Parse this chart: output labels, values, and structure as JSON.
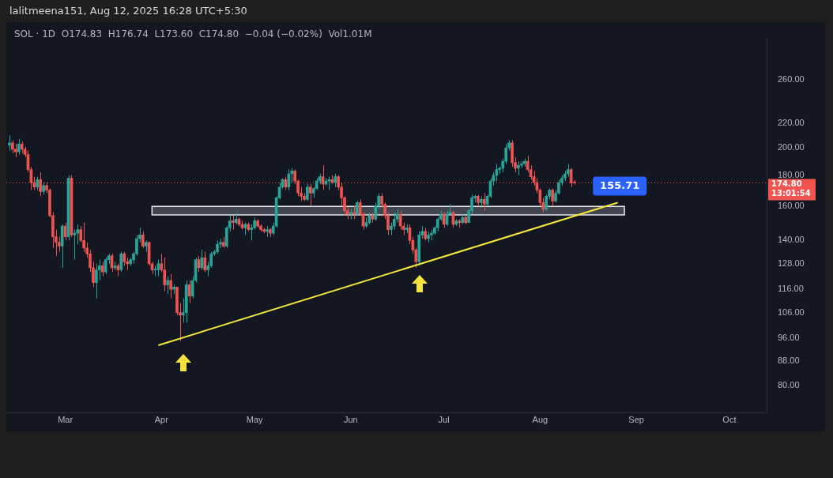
{
  "chart_data": {
    "type": "candlestick",
    "title": "lalitmeena151, Aug 12, 2025 16:28 UTC+5:30",
    "subtitle": "SOL · 1D  O174.83  H176.74  L173.60  C174.80  −0.04 (−0.02%)  Vol1.01M",
    "log": true,
    "grid": false,
    "legend": false,
    "xlim": [
      "2025-02-10",
      "2025-10-13"
    ],
    "xticks": [
      {
        "value": "2025-03-01",
        "label": "Mar"
      },
      {
        "value": "2025-04-01",
        "label": "Apr"
      },
      {
        "value": "2025-05-01",
        "label": "May"
      },
      {
        "value": "2025-06-01",
        "label": "Jun"
      },
      {
        "value": "2025-07-01",
        "label": "Jul"
      },
      {
        "value": "2025-08-01",
        "label": "Aug"
      },
      {
        "value": "2025-09-01",
        "label": "Sep"
      },
      {
        "value": "2025-10-01",
        "label": "Oct"
      }
    ],
    "ylim": [
      72,
      305
    ],
    "yticks": [
      {
        "value": 80,
        "label": "80.00"
      },
      {
        "value": 88,
        "label": "88.00"
      },
      {
        "value": 96,
        "label": "96.00"
      },
      {
        "value": 106,
        "label": "106.00"
      },
      {
        "value": 116,
        "label": "116.00"
      },
      {
        "value": 128,
        "label": "128.00"
      },
      {
        "value": 140,
        "label": "140.00"
      },
      {
        "value": 160,
        "label": "160.00"
      },
      {
        "value": 180,
        "label": "180.00"
      },
      {
        "value": 200,
        "label": "200.00"
      },
      {
        "value": 220,
        "label": "220.00"
      },
      {
        "value": 260,
        "label": "260.00"
      }
    ],
    "ref_lines": [
      {
        "axis": "y",
        "value": 174.8,
        "label": "174.80\n13:01:54",
        "color": "#f05350",
        "line_style": "dotted"
      }
    ],
    "bands": [
      {
        "axis": "y",
        "from": 154.5,
        "to": 159.6,
        "color": "#4a4e58"
      }
    ],
    "annotations": [
      {
        "text": "155.71",
        "x": "2025-08-17",
        "y": 155.71
      }
    ],
    "series": [
      {
        "x": [
          "2025-02-11",
          "2025-02-12",
          "2025-02-13",
          "2025-02-14",
          "2025-02-15",
          "2025-02-16",
          "2025-02-17",
          "2025-02-18",
          "2025-02-19",
          "2025-02-20",
          "2025-02-21",
          "2025-02-22",
          "2025-02-23",
          "2025-02-24",
          "2025-02-25",
          "2025-02-26",
          "2025-02-27",
          "2025-02-28",
          "2025-03-01",
          "2025-03-02",
          "2025-03-03",
          "2025-03-04",
          "2025-03-05",
          "2025-03-06",
          "2025-03-07",
          "2025-03-08",
          "2025-03-09",
          "2025-03-10",
          "2025-03-11",
          "2025-03-12",
          "2025-03-13",
          "2025-03-14",
          "2025-03-15",
          "2025-03-16",
          "2025-03-17",
          "2025-03-18",
          "2025-03-19",
          "2025-03-20",
          "2025-03-21",
          "2025-03-22",
          "2025-03-23",
          "2025-03-24",
          "2025-03-25",
          "2025-03-26",
          "2025-03-27",
          "2025-03-28",
          "2025-03-29",
          "2025-03-30",
          "2025-03-31",
          "2025-04-01",
          "2025-04-02",
          "2025-04-03",
          "2025-04-04",
          "2025-04-05",
          "2025-04-06",
          "2025-04-07",
          "2025-04-08",
          "2025-04-09",
          "2025-04-10",
          "2025-04-11",
          "2025-04-12",
          "2025-04-13",
          "2025-04-14",
          "2025-04-15",
          "2025-04-16",
          "2025-04-17",
          "2025-04-18",
          "2025-04-19",
          "2025-04-20",
          "2025-04-21",
          "2025-04-22",
          "2025-04-23",
          "2025-04-24",
          "2025-04-25",
          "2025-04-26",
          "2025-04-27",
          "2025-04-28",
          "2025-04-29",
          "2025-04-30",
          "2025-05-01",
          "2025-05-02",
          "2025-05-03",
          "2025-05-04",
          "2025-05-05",
          "2025-05-06",
          "2025-05-07",
          "2025-05-08",
          "2025-05-09",
          "2025-05-10",
          "2025-05-11",
          "2025-05-12",
          "2025-05-13",
          "2025-05-14",
          "2025-05-15",
          "2025-05-16",
          "2025-05-17",
          "2025-05-18",
          "2025-05-19",
          "2025-05-20",
          "2025-05-21",
          "2025-05-22",
          "2025-05-23",
          "2025-05-24",
          "2025-05-25",
          "2025-05-26",
          "2025-05-27",
          "2025-05-28",
          "2025-05-29",
          "2025-05-30",
          "2025-05-31",
          "2025-06-01",
          "2025-06-02",
          "2025-06-03",
          "2025-06-04",
          "2025-06-05",
          "2025-06-06",
          "2025-06-07",
          "2025-06-08",
          "2025-06-09",
          "2025-06-10",
          "2025-06-11",
          "2025-06-12",
          "2025-06-13",
          "2025-06-14",
          "2025-06-15",
          "2025-06-16",
          "2025-06-17",
          "2025-06-18",
          "2025-06-19",
          "2025-06-20",
          "2025-06-21",
          "2025-06-22",
          "2025-06-23",
          "2025-06-24",
          "2025-06-25",
          "2025-06-26",
          "2025-06-27",
          "2025-06-28",
          "2025-06-29",
          "2025-06-30",
          "2025-07-01",
          "2025-07-02",
          "2025-07-03",
          "2025-07-04",
          "2025-07-05",
          "2025-07-06",
          "2025-07-07",
          "2025-07-08",
          "2025-07-09",
          "2025-07-10",
          "2025-07-11",
          "2025-07-12",
          "2025-07-13",
          "2025-07-14",
          "2025-07-15",
          "2025-07-16",
          "2025-07-17",
          "2025-07-18",
          "2025-07-19",
          "2025-07-20",
          "2025-07-21",
          "2025-07-22",
          "2025-07-23",
          "2025-07-24",
          "2025-07-25",
          "2025-07-26",
          "2025-07-27",
          "2025-07-28",
          "2025-07-29",
          "2025-07-30",
          "2025-07-31",
          "2025-08-01",
          "2025-08-02",
          "2025-08-03",
          "2025-08-04",
          "2025-08-05",
          "2025-08-06",
          "2025-08-07",
          "2025-08-08",
          "2025-08-09",
          "2025-08-10",
          "2025-08-11",
          "2025-08-12"
        ],
        "ohlc": [
          [
            202,
            210,
            198,
            204
          ],
          [
            204,
            206,
            196,
            199
          ],
          [
            199,
            203,
            193,
            197
          ],
          [
            197,
            207,
            195,
            203
          ],
          [
            203,
            205,
            196,
            199
          ],
          [
            199,
            201,
            193,
            195
          ],
          [
            195,
            198,
            182,
            184
          ],
          [
            184,
            186,
            170,
            175
          ],
          [
            175,
            179,
            170,
            172
          ],
          [
            172,
            179,
            170,
            177
          ],
          [
            177,
            182,
            166,
            169
          ],
          [
            169,
            175,
            167,
            173
          ],
          [
            173,
            175,
            168,
            170
          ],
          [
            170,
            171,
            153,
            154
          ],
          [
            154,
            156,
            136,
            142
          ],
          [
            142,
            146,
            132,
            139
          ],
          [
            139,
            142,
            134,
            137
          ],
          [
            137,
            149,
            126,
            148
          ],
          [
            148,
            150,
            140,
            142
          ],
          [
            142,
            180,
            140,
            178
          ],
          [
            178,
            180,
            142,
            143
          ],
          [
            143,
            146,
            130,
            144
          ],
          [
            144,
            149,
            138,
            146
          ],
          [
            146,
            148,
            139,
            140
          ],
          [
            140,
            150,
            134,
            136
          ],
          [
            136,
            139,
            131,
            133
          ],
          [
            133,
            135,
            124,
            126
          ],
          [
            126,
            129,
            117,
            119
          ],
          [
            119,
            128,
            112,
            125
          ],
          [
            125,
            130,
            120,
            127
          ],
          [
            127,
            129,
            122,
            124
          ],
          [
            124,
            131,
            123,
            130
          ],
          [
            130,
            133,
            128,
            132
          ],
          [
            132,
            133,
            124,
            126
          ],
          [
            126,
            129,
            125,
            127
          ],
          [
            127,
            128,
            122,
            125
          ],
          [
            125,
            134,
            124,
            133
          ],
          [
            133,
            134,
            127,
            129
          ],
          [
            129,
            131,
            125,
            128
          ],
          [
            128,
            131,
            127,
            130
          ],
          [
            130,
            134,
            128,
            133
          ],
          [
            133,
            143,
            132,
            141
          ],
          [
            141,
            147,
            139,
            143
          ],
          [
            143,
            145,
            136,
            137
          ],
          [
            137,
            140,
            134,
            139
          ],
          [
            139,
            139,
            127,
            128
          ],
          [
            128,
            129,
            123,
            125
          ],
          [
            125,
            127,
            122,
            125
          ],
          [
            125,
            130,
            122,
            128
          ],
          [
            128,
            133,
            124,
            125
          ],
          [
            125,
            131,
            115,
            118
          ],
          [
            118,
            122,
            114,
            120
          ],
          [
            120,
            123,
            112,
            116
          ],
          [
            116,
            118,
            114,
            117
          ],
          [
            117,
            117,
            105,
            106
          ],
          [
            106,
            110,
            95,
            105
          ],
          [
            105,
            112,
            102,
            106
          ],
          [
            106,
            120,
            102,
            118
          ],
          [
            118,
            120,
            110,
            113
          ],
          [
            113,
            122,
            112,
            120
          ],
          [
            120,
            131,
            119,
            130
          ],
          [
            130,
            132,
            124,
            126
          ],
          [
            126,
            135,
            125,
            131
          ],
          [
            131,
            134,
            124,
            125
          ],
          [
            125,
            129,
            122,
            127
          ],
          [
            127,
            134,
            126,
            133
          ],
          [
            133,
            135,
            132,
            134
          ],
          [
            134,
            140,
            133,
            138
          ],
          [
            138,
            141,
            136,
            139
          ],
          [
            139,
            142,
            136,
            137
          ],
          [
            137,
            148,
            136,
            147
          ],
          [
            147,
            154,
            145,
            151
          ],
          [
            151,
            154,
            146,
            150
          ],
          [
            150,
            156,
            149,
            152
          ],
          [
            152,
            153,
            148,
            149
          ],
          [
            149,
            151,
            146,
            147
          ],
          [
            147,
            150,
            143,
            149
          ],
          [
            149,
            150,
            145,
            146
          ],
          [
            146,
            149,
            140,
            147
          ],
          [
            147,
            153,
            146,
            151
          ],
          [
            151,
            152,
            147,
            148
          ],
          [
            148,
            149,
            145,
            146
          ],
          [
            146,
            147,
            144,
            145
          ],
          [
            145,
            148,
            142,
            146
          ],
          [
            146,
            147,
            142,
            144
          ],
          [
            144,
            150,
            143,
            148
          ],
          [
            148,
            166,
            147,
            165
          ],
          [
            165,
            175,
            164,
            172
          ],
          [
            172,
            178,
            171,
            177
          ],
          [
            177,
            179,
            170,
            172
          ],
          [
            172,
            184,
            170,
            181
          ],
          [
            181,
            185,
            175,
            183
          ],
          [
            183,
            184,
            174,
            176
          ],
          [
            176,
            177,
            166,
            168
          ],
          [
            168,
            172,
            163,
            166
          ],
          [
            166,
            168,
            163,
            164
          ],
          [
            164,
            174,
            163,
            172
          ],
          [
            172,
            174,
            160,
            168
          ],
          [
            168,
            172,
            165,
            171
          ],
          [
            171,
            178,
            170,
            176
          ],
          [
            176,
            181,
            174,
            179
          ],
          [
            179,
            187,
            170,
            174
          ],
          [
            174,
            178,
            173,
            176
          ],
          [
            176,
            179,
            170,
            177
          ],
          [
            177,
            180,
            174,
            175
          ],
          [
            175,
            181,
            172,
            179
          ],
          [
            179,
            180,
            170,
            172
          ],
          [
            172,
            175,
            160,
            165
          ],
          [
            165,
            166,
            154,
            157
          ],
          [
            157,
            159,
            152,
            155
          ],
          [
            155,
            158,
            152,
            156
          ],
          [
            156,
            160,
            152,
            155
          ],
          [
            155,
            163,
            154,
            162
          ],
          [
            162,
            164,
            154,
            155
          ],
          [
            155,
            156,
            146,
            148
          ],
          [
            148,
            153,
            147,
            150
          ],
          [
            150,
            156,
            149,
            154
          ],
          [
            154,
            156,
            150,
            152
          ],
          [
            152,
            162,
            151,
            160
          ],
          [
            160,
            168,
            158,
            166
          ],
          [
            166,
            168,
            159,
            161
          ],
          [
            161,
            162,
            152,
            154
          ],
          [
            154,
            156,
            143,
            146
          ],
          [
            146,
            150,
            143,
            148
          ],
          [
            148,
            156,
            146,
            152
          ],
          [
            152,
            158,
            150,
            155
          ],
          [
            155,
            157,
            146,
            148
          ],
          [
            148,
            150,
            143,
            146
          ],
          [
            146,
            149,
            144,
            147
          ],
          [
            147,
            149,
            138,
            140
          ],
          [
            140,
            142,
            133,
            135
          ],
          [
            135,
            136,
            126,
            129
          ],
          [
            129,
            145,
            127,
            143
          ],
          [
            143,
            148,
            141,
            145
          ],
          [
            145,
            147,
            140,
            141
          ],
          [
            141,
            145,
            139,
            143
          ],
          [
            143,
            146,
            140,
            144
          ],
          [
            144,
            148,
            143,
            147
          ],
          [
            147,
            153,
            145,
            152
          ],
          [
            152,
            157,
            151,
            155
          ],
          [
            155,
            156,
            147,
            149
          ],
          [
            149,
            157,
            148,
            155
          ],
          [
            155,
            161,
            154,
            156
          ],
          [
            156,
            157,
            147,
            149
          ],
          [
            149,
            152,
            148,
            151
          ],
          [
            151,
            152,
            147,
            150
          ],
          [
            150,
            155,
            149,
            153
          ],
          [
            153,
            154,
            149,
            150
          ],
          [
            150,
            158,
            150,
            157
          ],
          [
            157,
            167,
            155,
            165
          ],
          [
            165,
            167,
            162,
            166
          ],
          [
            166,
            167,
            160,
            162
          ],
          [
            162,
            166,
            160,
            164
          ],
          [
            164,
            168,
            157,
            161
          ],
          [
            161,
            167,
            160,
            166
          ],
          [
            166,
            178,
            165,
            176
          ],
          [
            176,
            182,
            173,
            180
          ],
          [
            180,
            188,
            176,
            184
          ],
          [
            184,
            186,
            181,
            185
          ],
          [
            185,
            192,
            182,
            190
          ],
          [
            190,
            203,
            188,
            200
          ],
          [
            200,
            206,
            198,
            204
          ],
          [
            204,
            206,
            186,
            189
          ],
          [
            189,
            193,
            182,
            185
          ],
          [
            185,
            190,
            180,
            187
          ],
          [
            187,
            190,
            185,
            188
          ],
          [
            188,
            192,
            186,
            190
          ],
          [
            190,
            194,
            182,
            184
          ],
          [
            184,
            187,
            177,
            179
          ],
          [
            179,
            183,
            173,
            175
          ],
          [
            175,
            178,
            168,
            170
          ],
          [
            170,
            171,
            160,
            162
          ],
          [
            162,
            165,
            156,
            158
          ],
          [
            158,
            167,
            157,
            166
          ],
          [
            166,
            171,
            164,
            170
          ],
          [
            170,
            171,
            160,
            163
          ],
          [
            163,
            170,
            162,
            168
          ],
          [
            168,
            177,
            167,
            175
          ],
          [
            175,
            180,
            173,
            178
          ],
          [
            178,
            183,
            176,
            181
          ],
          [
            181,
            188,
            179,
            184
          ],
          [
            184,
            185,
            172,
            174.83
          ],
          [
            174.83,
            176.74,
            173.6,
            174.8
          ]
        ]
      },
      {
        "type": "line",
        "color": "#f5e73c",
        "x": [
          "2025-03-31",
          "2025-08-26"
        ],
        "values": [
          93.5,
          162
        ],
        "marker": "none"
      }
    ]
  }
}
